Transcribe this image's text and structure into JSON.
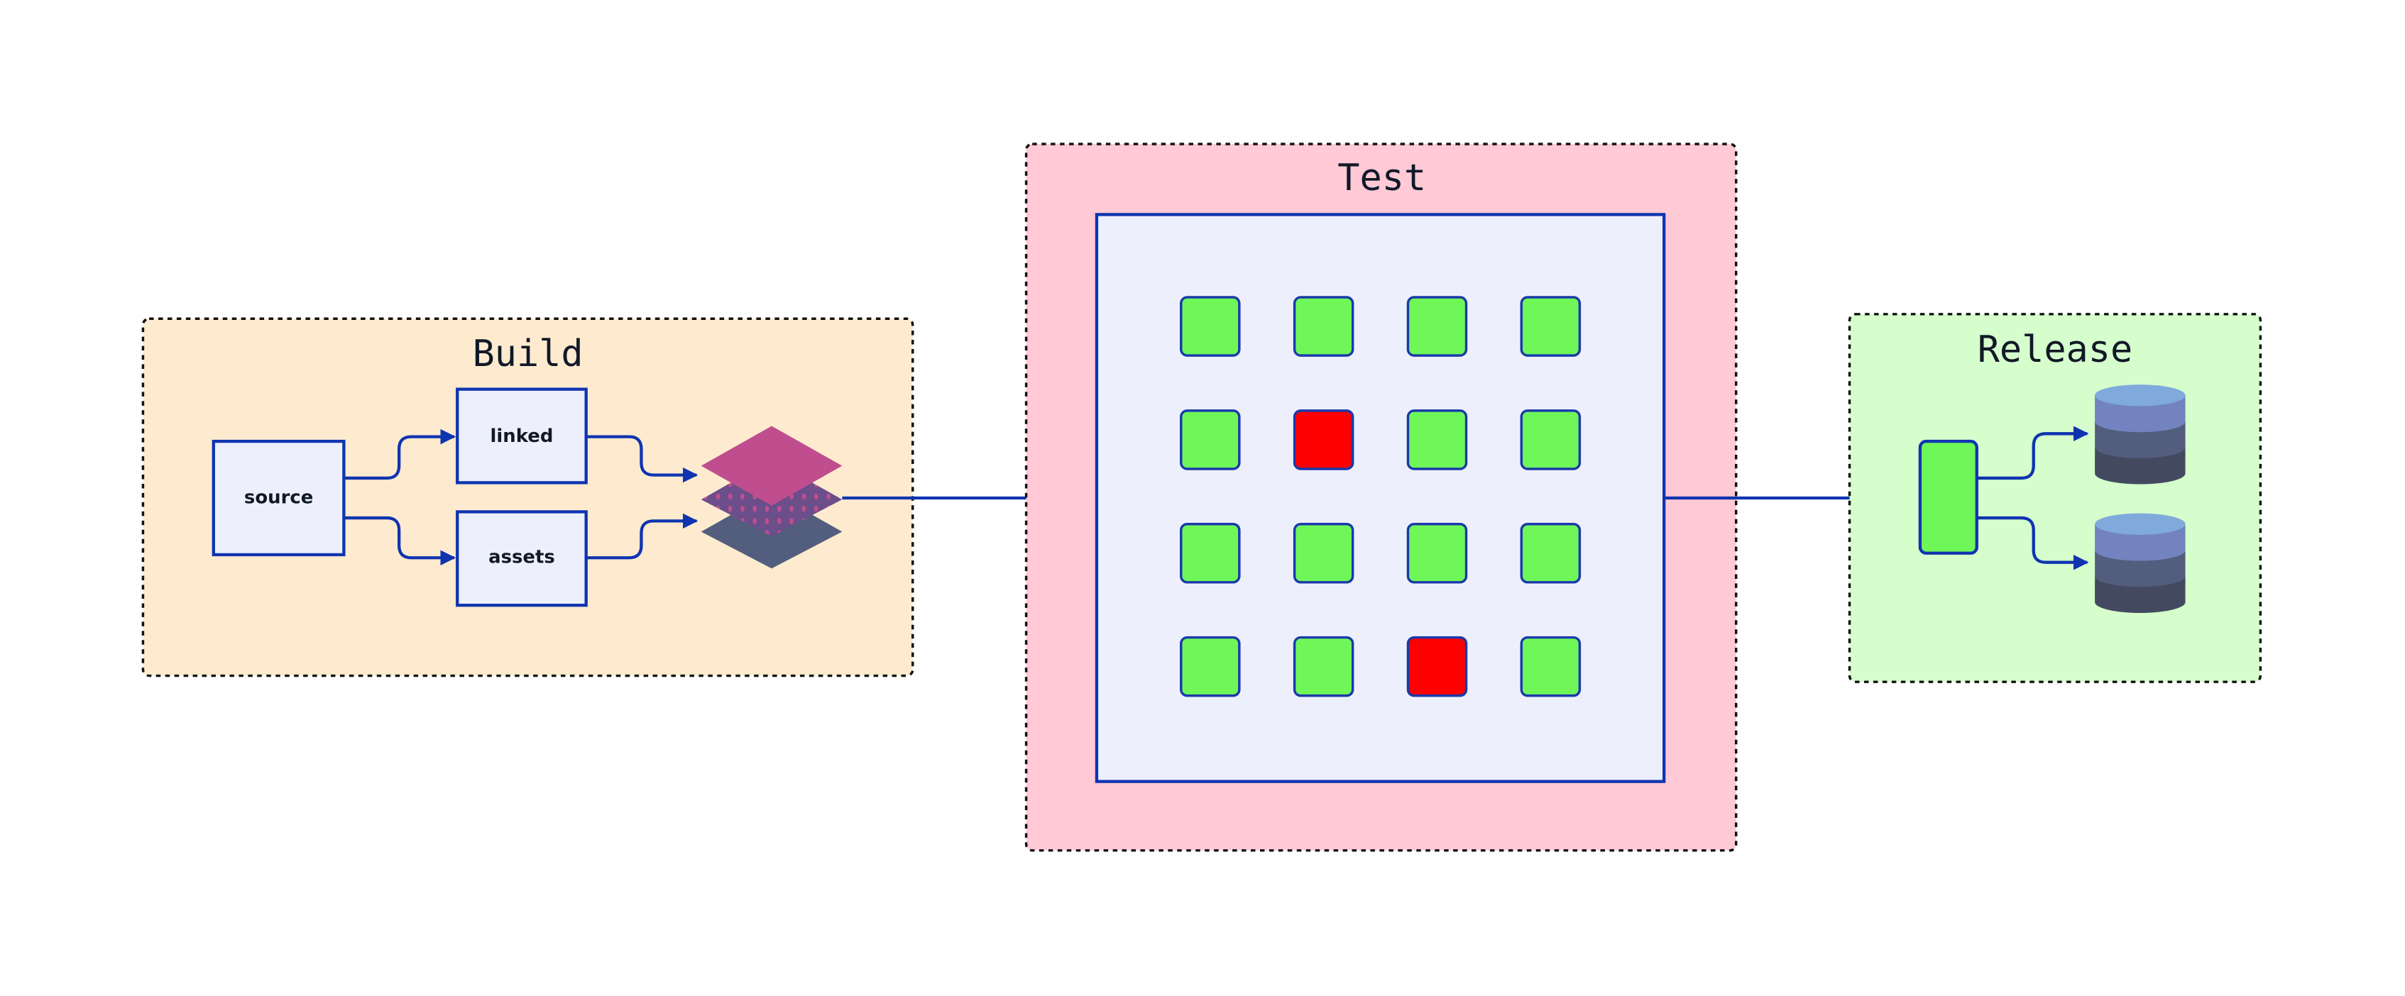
{
  "groups": {
    "build": {
      "title": "Build",
      "fill": "#feebcf"
    },
    "test": {
      "title": "Test",
      "fill": "#ffc9d6"
    },
    "release": {
      "title": "Release",
      "fill": "#d6fdcc"
    }
  },
  "build_nodes": {
    "source": "source",
    "linked": "linked",
    "assets": "assets"
  },
  "layers_icon": "stacked-layers-icon",
  "database_icon": "database-icon",
  "test_grid": {
    "rows": 4,
    "cols": 4,
    "status": [
      [
        "pass",
        "pass",
        "pass",
        "pass"
      ],
      [
        "pass",
        "fail",
        "pass",
        "pass"
      ],
      [
        "pass",
        "pass",
        "pass",
        "pass"
      ],
      [
        "pass",
        "pass",
        "fail",
        "pass"
      ]
    ]
  },
  "colors": {
    "edge": "#0f34b0",
    "pass": "#6ff75a",
    "fail": "#ff0000",
    "node_fill": "#edf0fc"
  }
}
